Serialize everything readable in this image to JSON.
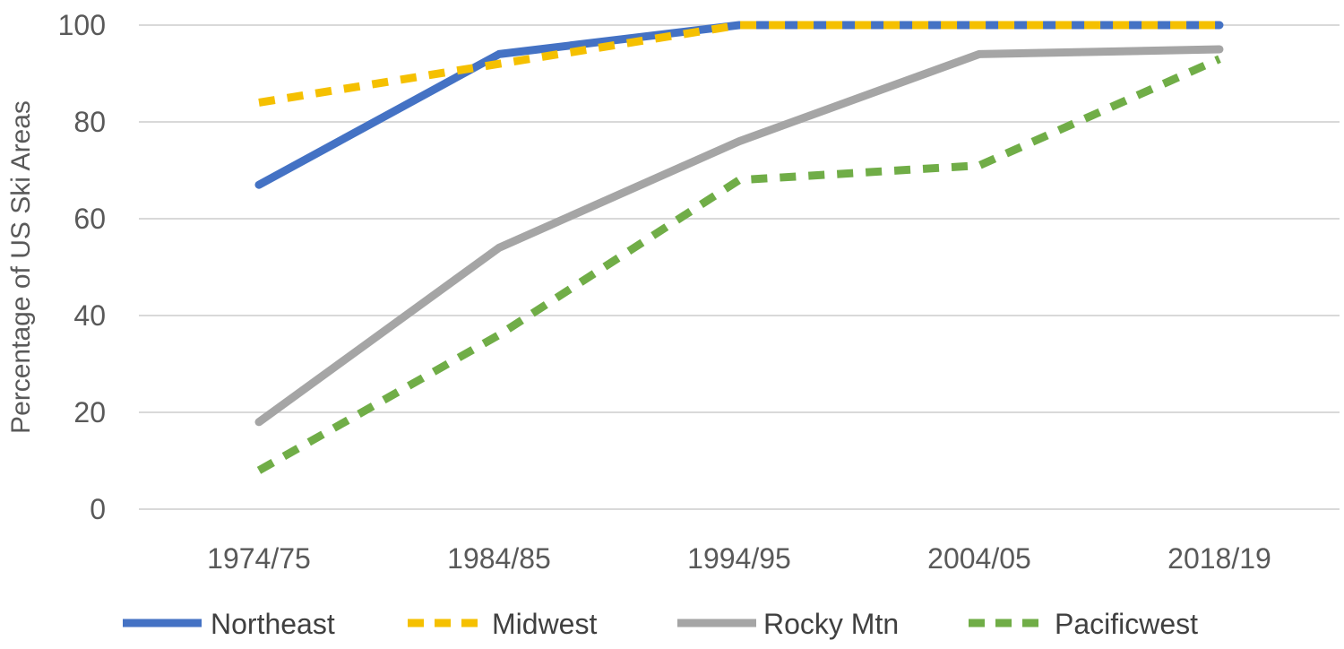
{
  "chart_data": {
    "type": "line",
    "title": "",
    "xlabel": "",
    "ylabel": "Percentage of US Ski Areas",
    "categories": [
      "1974/75",
      "1984/85",
      "1994/95",
      "2004/05",
      "2018/19"
    ],
    "ylim": [
      0,
      100
    ],
    "yticks": [
      "0",
      "20",
      "40",
      "60",
      "80",
      "100"
    ],
    "grid": true,
    "legend_position": "bottom",
    "series": [
      {
        "name": "Northeast",
        "values": [
          67,
          94,
          100,
          100,
          100
        ],
        "color": "#4472c4",
        "dashed": false
      },
      {
        "name": "Midwest",
        "values": [
          84,
          92,
          100,
          100,
          100
        ],
        "color": "#f5c000",
        "dashed": true
      },
      {
        "name": "Rocky Mtn",
        "values": [
          18,
          54,
          76,
          94,
          95
        ],
        "color": "#a5a5a5",
        "dashed": false
      },
      {
        "name": "Pacificwest",
        "values": [
          8,
          36,
          68,
          71,
          93
        ],
        "color": "#70ad47",
        "dashed": true
      }
    ]
  }
}
